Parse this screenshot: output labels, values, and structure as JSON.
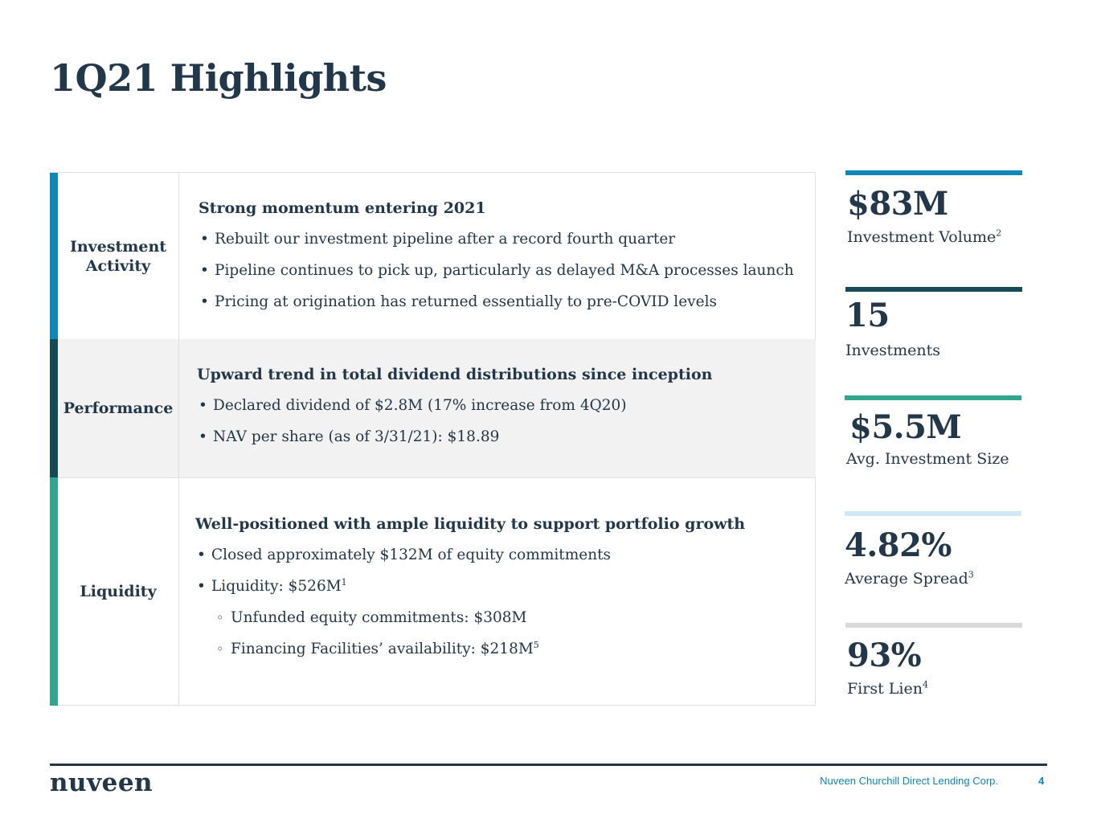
{
  "page": {
    "title": "1Q21 Highlights"
  },
  "sections": [
    {
      "label": "Investment Activity",
      "heading": "Strong momentum entering 2021",
      "bullets": [
        "Rebuilt our investment pipeline after a record fourth quarter",
        "Pipeline continues to pick up, particularly as delayed M&A processes launch",
        "Pricing at origination has returned essentially to pre-COVID levels"
      ]
    },
    {
      "label": "Performance",
      "heading": "Upward trend in total dividend distributions since inception",
      "bullets": [
        "Declared dividend of $2.8M (17% increase from 4Q20)",
        "NAV per share (as of 3/31/21): $18.89"
      ]
    },
    {
      "label": "Liquidity",
      "heading": "Well-positioned with ample liquidity to support portfolio growth",
      "bullets": [
        "Closed approximately $132M of equity commitments",
        "Liquidity: $526M",
        "Unfunded equity commitments: $308M",
        "Financing Facilities’ availability: $218M"
      ],
      "footnotes": {
        "liquidity": "1",
        "facilities": "5"
      }
    }
  ],
  "stats": [
    {
      "value": "$83M",
      "caption": "Investment Volume",
      "footnote": "2"
    },
    {
      "value": "15",
      "caption": "Investments"
    },
    {
      "value": "$5.5M",
      "caption": "Avg. Investment Size"
    },
    {
      "value": "4.82%",
      "caption": "Average Spread",
      "footnote": "3"
    },
    {
      "value": "93%",
      "caption": "First Lien",
      "footnote": "4"
    }
  ],
  "colors": {
    "navy": "#22374a",
    "blue": "#0f86b4",
    "dark_teal": "#164a55",
    "green": "#33a58e",
    "light_blue": "#cfe9f8",
    "gray": "#d9d9d9"
  },
  "footer": {
    "logo": "nuveen",
    "company": "Nuveen Churchill Direct Lending Corp.",
    "page_number": "4"
  }
}
